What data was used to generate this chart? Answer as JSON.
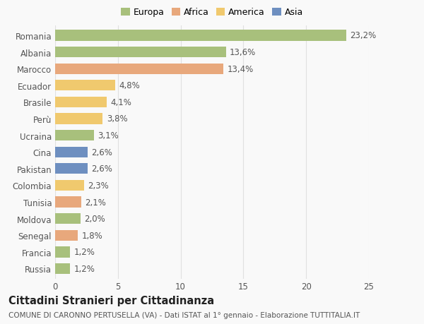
{
  "countries": [
    "Romania",
    "Albania",
    "Marocco",
    "Ecuador",
    "Brasile",
    "Perù",
    "Ucraina",
    "Cina",
    "Pakistan",
    "Colombia",
    "Tunisia",
    "Moldova",
    "Senegal",
    "Francia",
    "Russia"
  ],
  "values": [
    23.2,
    13.6,
    13.4,
    4.8,
    4.1,
    3.8,
    3.1,
    2.6,
    2.6,
    2.3,
    2.1,
    2.0,
    1.8,
    1.2,
    1.2
  ],
  "labels": [
    "23,2%",
    "13,6%",
    "13,4%",
    "4,8%",
    "4,1%",
    "3,8%",
    "3,1%",
    "2,6%",
    "2,6%",
    "2,3%",
    "2,1%",
    "2,0%",
    "1,8%",
    "1,2%",
    "1,2%"
  ],
  "colors": [
    "#a8c07c",
    "#a8c07c",
    "#e8a87c",
    "#f0c96e",
    "#f0c96e",
    "#f0c96e",
    "#a8c07c",
    "#6e8fc0",
    "#6e8fc0",
    "#f0c96e",
    "#e8a87c",
    "#a8c07c",
    "#e8a87c",
    "#a8c07c",
    "#a8c07c"
  ],
  "continents": [
    "Europa",
    "Africa",
    "America",
    "Asia"
  ],
  "continent_colors": [
    "#a8c07c",
    "#e8a87c",
    "#f0c96e",
    "#6e8fc0"
  ],
  "title": "Cittadini Stranieri per Cittadinanza",
  "subtitle": "COMUNE DI CARONNO PERTUSELLA (VA) - Dati ISTAT al 1° gennaio - Elaborazione TUTTITALIA.IT",
  "xlim": [
    0,
    25
  ],
  "xticks": [
    0,
    5,
    10,
    15,
    20,
    25
  ],
  "background_color": "#f9f9f9",
  "grid_color": "#e0e0e0",
  "bar_height": 0.65,
  "label_fontsize": 8.5,
  "title_fontsize": 10.5,
  "subtitle_fontsize": 7.5,
  "ytick_fontsize": 8.5,
  "xtick_fontsize": 8.5
}
